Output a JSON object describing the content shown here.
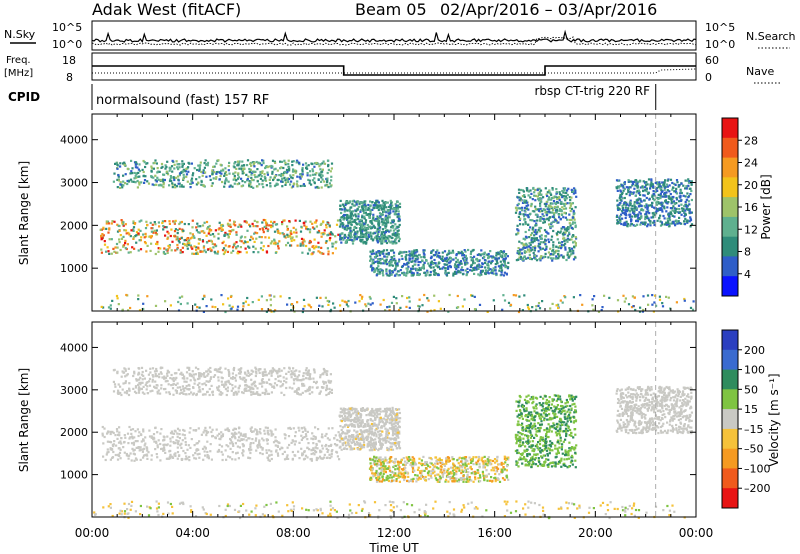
{
  "header": {
    "station": "Adak West (fitACF)",
    "beam": "Beam 05",
    "date_range": "02/Apr/2016 – 03/Apr/2016"
  },
  "strips": {
    "nsky_label": "N.Sky",
    "nsearch_label": "N.Search",
    "count_ticks": [
      "10^5",
      "10^0"
    ],
    "freq_label_1": "Freq.",
    "freq_label_2": "[MHz]",
    "freq_ticks": [
      "18",
      "8"
    ],
    "nave_label": "Nave",
    "nave_ticks": [
      "60",
      "0"
    ],
    "cpid_label": "CPID",
    "cpid_1": "normalsound (fast) 157 RF",
    "cpid_2": "rbsp CT-trig 220 RF",
    "cpid_switch_hour": 22.4
  },
  "colors": {
    "power": [
      "#0a12ff",
      "#2f5ec8",
      "#2f8c7a",
      "#5fb08f",
      "#9ec36a",
      "#f2c31b",
      "#f59a21",
      "#f05a1c",
      "#e81313"
    ],
    "velocity": [
      "#2b3fc0",
      "#3a6bd0",
      "#2f8c5e",
      "#7fc442",
      "#c9c9c4",
      "#f5c23a",
      "#f59a21",
      "#f05a1c",
      "#e81313"
    ]
  },
  "chart_data": [
    {
      "type": "heatmap",
      "quantity": "power",
      "xlabel": "Time UT",
      "ylabel": "Slant Range [km]",
      "xlim": [
        0,
        24
      ],
      "x_ticks": [
        "00:00",
        "04:00",
        "08:00",
        "12:00",
        "16:00",
        "20:00",
        "00:00"
      ],
      "ylim": [
        0,
        4600
      ],
      "y_ticks": [
        1000,
        2000,
        3000,
        4000
      ],
      "colorbar": {
        "label": "Power [dB]",
        "ticks": [
          "4",
          "8",
          "12",
          "16",
          "20",
          "24",
          "28"
        ],
        "range": [
          0,
          32
        ]
      },
      "regions": [
        {
          "t": [
            0.3,
            9.8
          ],
          "range_km": [
            1350,
            2150
          ],
          "level": [
            8,
            30
          ]
        },
        {
          "t": [
            0.8,
            9.5
          ],
          "range_km": [
            2900,
            3550
          ],
          "level": [
            6,
            16
          ]
        },
        {
          "t": [
            9.8,
            12.2
          ],
          "range_km": [
            1600,
            2600
          ],
          "level": [
            6,
            14
          ]
        },
        {
          "t": [
            11.0,
            16.5
          ],
          "range_km": [
            850,
            1450
          ],
          "level": [
            4,
            14
          ]
        },
        {
          "t": [
            16.8,
            19.2
          ],
          "range_km": [
            1200,
            2900
          ],
          "level": [
            4,
            16
          ]
        },
        {
          "t": [
            20.8,
            23.8
          ],
          "range_km": [
            2000,
            3100
          ],
          "level": [
            4,
            12
          ]
        },
        {
          "t": [
            0,
            24
          ],
          "range_km": [
            0,
            400
          ],
          "level": [
            4,
            24
          ]
        }
      ]
    },
    {
      "type": "heatmap",
      "quantity": "velocity",
      "xlabel": "Time UT",
      "ylabel": "Slant Range [km]",
      "xlim": [
        0,
        24
      ],
      "x_ticks": [
        "00:00",
        "04:00",
        "08:00",
        "12:00",
        "16:00",
        "20:00",
        "00:00"
      ],
      "ylim": [
        0,
        4600
      ],
      "y_ticks": [
        1000,
        2000,
        3000,
        4000
      ],
      "colorbar": {
        "label": "Velocity [m s⁻¹]",
        "ticks": [
          "200",
          "100",
          "50",
          "15",
          "–15",
          "–50",
          "–100",
          "–200"
        ],
        "range": [
          -250,
          250
        ]
      },
      "regions": [
        {
          "t": [
            0.3,
            9.8
          ],
          "range_km": [
            1350,
            2150
          ],
          "level": [
            -10,
            10
          ]
        },
        {
          "t": [
            0.8,
            9.5
          ],
          "range_km": [
            2900,
            3550
          ],
          "level": [
            -10,
            10
          ]
        },
        {
          "t": [
            9.8,
            12.2
          ],
          "range_km": [
            1600,
            2600
          ],
          "level": [
            -30,
            20
          ]
        },
        {
          "t": [
            11.0,
            16.5
          ],
          "range_km": [
            850,
            1450
          ],
          "level": [
            -120,
            80
          ]
        },
        {
          "t": [
            16.8,
            19.2
          ],
          "range_km": [
            1200,
            2900
          ],
          "level": [
            30,
            120
          ]
        },
        {
          "t": [
            20.8,
            23.8
          ],
          "range_km": [
            2000,
            3100
          ],
          "level": [
            -10,
            10
          ]
        },
        {
          "t": [
            0,
            24
          ],
          "range_km": [
            0,
            400
          ],
          "level": [
            -80,
            40
          ]
        }
      ]
    }
  ]
}
